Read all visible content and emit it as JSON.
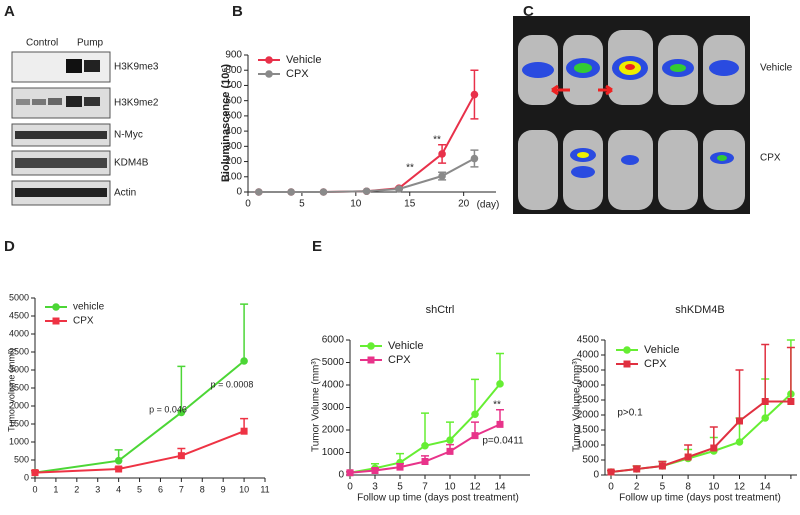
{
  "panel_labels": [
    "A",
    "B",
    "C",
    "D",
    "E"
  ],
  "blot": {
    "groups": [
      "Control",
      "Pump"
    ],
    "rows": [
      "H3K9me3",
      "H3K9me2",
      "N-Myc",
      "KDM4B",
      "Actin"
    ]
  },
  "imaging": {
    "rows": [
      "Vehicle",
      "CPX"
    ]
  },
  "chart_data": [
    {
      "type": "line",
      "ylabel": "Bioluminascence (10⁶)",
      "xlabel": "(day)",
      "error_bars": "both",
      "legend": "upper left",
      "marker": "circle",
      "x": [
        1,
        4,
        7,
        11,
        14,
        18,
        21
      ],
      "xlim": [
        0,
        23
      ],
      "xticks": [
        0,
        5,
        10,
        15,
        20
      ],
      "ylim": [
        0,
        900
      ],
      "yticks": [
        0,
        100,
        200,
        300,
        400,
        500,
        600,
        700,
        800,
        900
      ],
      "series": [
        {
          "name": "Vehicle",
          "color": "#e8314a",
          "values": [
            0,
            0,
            0,
            5,
            25,
            250,
            640
          ],
          "errors": [
            0,
            0,
            0,
            3,
            5,
            60,
            160
          ]
        },
        {
          "name": "CPX",
          "color": "#8a8a8a",
          "values": [
            0,
            0,
            0,
            5,
            20,
            105,
            220
          ],
          "errors": [
            0,
            0,
            0,
            3,
            5,
            25,
            55
          ]
        }
      ],
      "annotations": [
        "**",
        "**"
      ]
    },
    {
      "type": "line",
      "ylabel": "Tumor volume (mm³)",
      "error_bars": "up",
      "legend": "upper left",
      "x": [
        0,
        4,
        7,
        10
      ],
      "xlim": [
        0,
        11
      ],
      "xticks": [
        0,
        1,
        2,
        3,
        4,
        5,
        6,
        7,
        8,
        9,
        10,
        11
      ],
      "ylim": [
        0,
        5000
      ],
      "yticks": [
        0,
        500,
        1000,
        1500,
        2000,
        2500,
        3000,
        3500,
        4000,
        4500,
        5000
      ],
      "series": [
        {
          "name": "vehicle",
          "color": "#4cd636",
          "marker": "circle",
          "values": [
            150,
            480,
            1820,
            3250
          ],
          "errors": [
            50,
            300,
            1280,
            1580
          ]
        },
        {
          "name": "CPX",
          "color": "#ee3344",
          "marker": "square",
          "values": [
            150,
            250,
            620,
            1300
          ],
          "errors": [
            50,
            50,
            200,
            350
          ]
        }
      ],
      "annotations": [
        "p = 0.046",
        "p = 0.0008"
      ]
    },
    {
      "type": "line",
      "title": "shCtrl",
      "ylabel": "Tumor Volume (mm³)",
      "xlabel": "Follow up time (days post treatment)",
      "error_bars": "up",
      "legend": "upper left",
      "categories": [
        "0",
        "3",
        "5",
        "7",
        "10",
        "12",
        "14"
      ],
      "ylim": [
        0,
        6000
      ],
      "yticks": [
        0,
        1000,
        2000,
        3000,
        4000,
        5000,
        6000
      ],
      "series": [
        {
          "name": "Vehicle",
          "color": "#66ee33",
          "marker": "circle",
          "values": [
            100,
            300,
            550,
            1300,
            1550,
            2700,
            4050
          ],
          "errors": [
            50,
            200,
            400,
            1450,
            800,
            1550,
            1350
          ]
        },
        {
          "name": "CPX",
          "color": "#e8338a",
          "marker": "square",
          "values": [
            100,
            200,
            350,
            600,
            1050,
            1750,
            2250
          ],
          "errors": [
            50,
            100,
            150,
            250,
            300,
            600,
            650
          ]
        }
      ],
      "annotations": [
        "**",
        "p=0.0411"
      ]
    },
    {
      "type": "line",
      "title": "shKDM4B",
      "ylabel": "Tumor Volume (mm³)",
      "xlabel": "Follow up time (days post treatment)",
      "error_bars": "up",
      "legend": "upper left",
      "categories": [
        "0",
        "2",
        "5",
        "8",
        "10",
        "12",
        "14",
        null
      ],
      "ylim": [
        0,
        4500
      ],
      "yticks": [
        0,
        500,
        1000,
        1500,
        2000,
        2500,
        3000,
        3500,
        4000,
        4500
      ],
      "series": [
        {
          "name": "Vehicle",
          "color": "#66ee33",
          "marker": "circle",
          "values": [
            100,
            200,
            300,
            550,
            800,
            1100,
            1900,
            2700
          ],
          "errors": [
            50,
            100,
            150,
            300,
            450,
            800,
            1300,
            1800
          ]
        },
        {
          "name": "CPX",
          "color": "#e03040",
          "marker": "square",
          "values": [
            100,
            200,
            300,
            600,
            900,
            1800,
            2450,
            2450
          ],
          "errors": [
            50,
            100,
            150,
            400,
            700,
            1700,
            1900,
            1800
          ]
        }
      ],
      "annotations": [
        "p>0.1"
      ]
    }
  ]
}
